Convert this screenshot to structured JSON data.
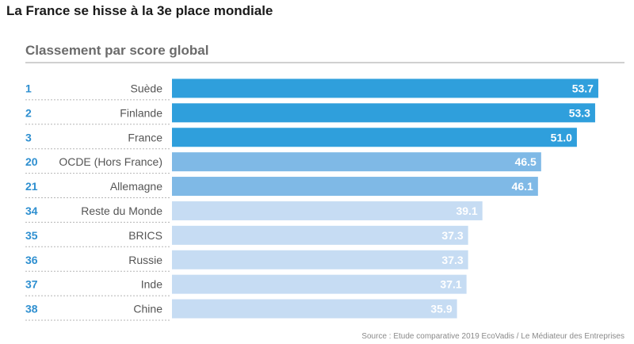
{
  "header": {
    "title": "La France se hisse à la 3e place mondiale"
  },
  "chart_data": {
    "type": "bar",
    "orientation": "horizontal",
    "title": "Classement par score global",
    "ranks": [
      "1",
      "2",
      "3",
      "20",
      "21",
      "34",
      "35",
      "36",
      "37",
      "38"
    ],
    "categories": [
      "Suède",
      "Finlande",
      "France",
      "OCDE (Hors France)",
      "Allemagne",
      "Reste du Monde",
      "BRICS",
      "Russie",
      "Inde",
      "Chine"
    ],
    "values": [
      53.7,
      53.3,
      51.0,
      46.5,
      46.1,
      39.1,
      37.3,
      37.3,
      37.1,
      35.9
    ],
    "value_labels": [
      "53.7",
      "53.3",
      "51.0",
      "46.5",
      "46.1",
      "39.1",
      "37.3",
      "37.3",
      "37.1",
      "35.9"
    ],
    "xlim": [
      0,
      55.5
    ],
    "grid": false,
    "colors": [
      "#2f9fdc",
      "#2f9fdc",
      "#2f9fdc",
      "#7fb9e6",
      "#7fb9e6",
      "#c6dcf3",
      "#c6dcf3",
      "#c6dcf3",
      "#c6dcf3",
      "#c6dcf3"
    ],
    "rank_color": "#2e8fd0"
  },
  "footer": {
    "source": "Source : Etude comparative 2019 EcoVadis / Le Médiateur des Entreprises"
  }
}
